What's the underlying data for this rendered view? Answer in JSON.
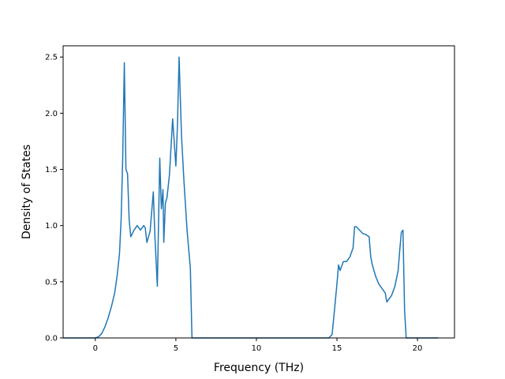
{
  "chart_data": {
    "type": "line",
    "xlabel": "Frequency (THz)",
    "ylabel": "Density of States",
    "xlim": [
      -2,
      22.3
    ],
    "ylim": [
      0,
      2.6
    ],
    "xticks": [
      0,
      5,
      10,
      15,
      20
    ],
    "yticks": [
      0.0,
      0.5,
      1.0,
      1.5,
      2.0,
      2.5
    ],
    "xtick_labels": [
      "0",
      "5",
      "10",
      "15",
      "20"
    ],
    "ytick_labels": [
      "0.0",
      "0.5",
      "1.0",
      "1.5",
      "2.0",
      "2.5"
    ],
    "grid": false,
    "line_color": "#1f77b4",
    "series": [
      {
        "x": [
          -2.0,
          -1.0,
          0.0,
          0.2,
          0.4,
          0.6,
          0.8,
          1.0,
          1.2,
          1.35,
          1.5,
          1.6,
          1.7,
          1.8,
          1.9,
          2.0,
          2.1,
          2.2,
          2.4,
          2.6,
          2.8,
          3.0,
          3.1,
          3.2,
          3.4,
          3.6,
          3.7,
          3.85,
          4.0,
          4.1,
          4.2,
          4.25,
          4.35,
          4.45,
          4.6,
          4.8,
          5.0,
          5.1,
          5.2,
          5.35,
          5.5,
          5.7,
          5.9,
          6.0,
          6.1,
          7.0,
          10.0,
          13.0,
          14.5,
          14.7,
          14.85,
          15.0,
          15.1,
          15.2,
          15.4,
          15.6,
          15.8,
          16.0,
          16.1,
          16.2,
          16.4,
          16.6,
          16.8,
          17.0,
          17.1,
          17.2,
          17.4,
          17.6,
          17.8,
          18.0,
          18.1,
          18.2,
          18.4,
          18.6,
          18.8,
          18.9,
          19.0,
          19.1,
          19.2,
          19.3,
          19.4,
          19.5,
          19.7,
          20.0,
          21.3
        ],
        "y": [
          0.0,
          0.0,
          0.0,
          0.01,
          0.04,
          0.1,
          0.18,
          0.28,
          0.4,
          0.55,
          0.75,
          1.05,
          1.6,
          2.45,
          1.5,
          1.46,
          1.05,
          0.9,
          0.96,
          1.0,
          0.96,
          1.0,
          0.98,
          0.85,
          0.95,
          1.3,
          0.9,
          0.46,
          1.6,
          1.15,
          1.32,
          0.85,
          1.2,
          1.25,
          1.45,
          1.95,
          1.53,
          1.9,
          2.5,
          1.8,
          1.4,
          0.95,
          0.62,
          0.0,
          0.0,
          0.0,
          0.0,
          0.0,
          0.0,
          0.03,
          0.25,
          0.48,
          0.65,
          0.6,
          0.68,
          0.68,
          0.72,
          0.8,
          0.99,
          0.99,
          0.96,
          0.93,
          0.92,
          0.9,
          0.72,
          0.65,
          0.55,
          0.48,
          0.44,
          0.4,
          0.32,
          0.34,
          0.38,
          0.46,
          0.6,
          0.78,
          0.94,
          0.96,
          0.25,
          0.0,
          0.0,
          0.0,
          0.0,
          0.0,
          0.0
        ]
      }
    ]
  }
}
